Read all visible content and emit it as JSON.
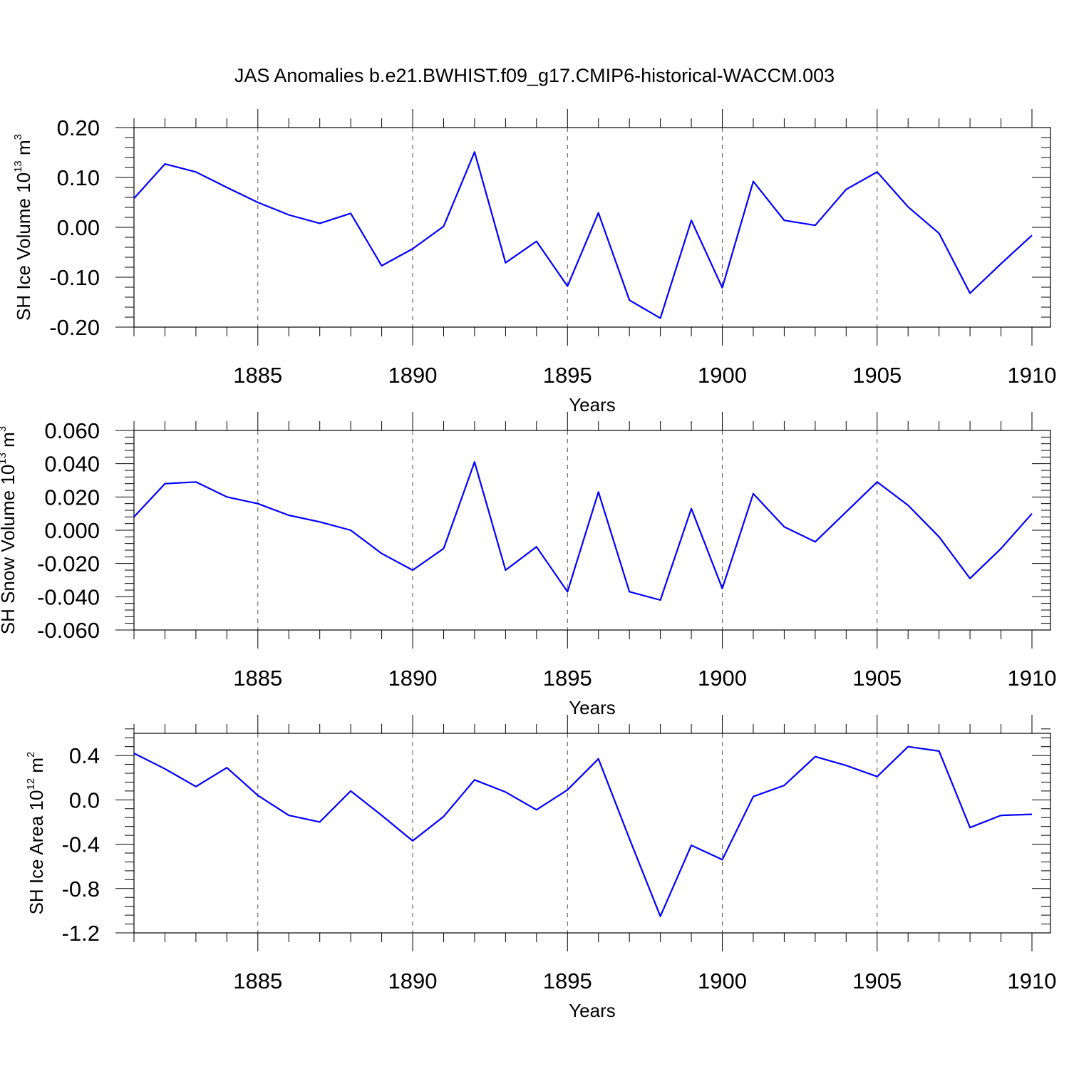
{
  "title": "JAS Anomalies b.e21.BWHIST.f09_g17.CMIP6-historical-WACCM.003",
  "line_color": "#0000ff",
  "chart_data": [
    {
      "type": "line",
      "ylabel": "SH Ice Volume 10",
      "ylabel_exp": "13",
      "ylabel_unit": " m",
      "ylabel_unit_exp": "3",
      "xlabel": "Years",
      "xlim": [
        1881,
        1910
      ],
      "ylim": [
        -0.2,
        0.2
      ],
      "yticks": [
        0.2,
        0.1,
        0.0,
        -0.1,
        -0.2
      ],
      "ytick_labels": [
        "0.20",
        "0.10",
        "0.00",
        "-0.10",
        "-0.20"
      ],
      "xticks": [
        1885,
        1890,
        1895,
        1900,
        1905,
        1910
      ],
      "xtick_labels": [
        "1885",
        "1890",
        "1895",
        "1900",
        "1905",
        "1910"
      ],
      "x": [
        1881,
        1882,
        1883,
        1884,
        1885,
        1886,
        1887,
        1888,
        1889,
        1890,
        1891,
        1892,
        1893,
        1894,
        1895,
        1896,
        1897,
        1898,
        1899,
        1900,
        1901,
        1902,
        1903,
        1904,
        1905,
        1906,
        1907,
        1908,
        1909,
        1910
      ],
      "values": [
        0.058,
        0.127,
        0.111,
        0.08,
        0.05,
        0.025,
        0.008,
        0.028,
        -0.077,
        -0.043,
        0.002,
        0.151,
        -0.071,
        -0.028,
        -0.118,
        0.029,
        -0.146,
        -0.182,
        0.014,
        -0.121,
        0.092,
        0.014,
        0.004,
        0.076,
        0.111,
        0.041,
        -0.012,
        -0.132,
        -0.073,
        -0.016
      ]
    },
    {
      "type": "line",
      "ylabel": "SH Snow Volume 10",
      "ylabel_exp": "13",
      "ylabel_unit": " m",
      "ylabel_unit_exp": "3",
      "xlabel": "Years",
      "xlim": [
        1881,
        1910
      ],
      "ylim": [
        -0.06,
        0.06
      ],
      "yticks": [
        0.06,
        0.04,
        0.02,
        0.0,
        -0.02,
        -0.04,
        -0.06
      ],
      "ytick_labels": [
        "0.060",
        "0.040",
        "0.020",
        "0.000",
        "-0.020",
        "-0.040",
        "-0.060"
      ],
      "xticks": [
        1885,
        1890,
        1895,
        1900,
        1905,
        1910
      ],
      "xtick_labels": [
        "1885",
        "1890",
        "1895",
        "1900",
        "1905",
        "1910"
      ],
      "x": [
        1881,
        1882,
        1883,
        1884,
        1885,
        1886,
        1887,
        1888,
        1889,
        1890,
        1891,
        1892,
        1893,
        1894,
        1895,
        1896,
        1897,
        1898,
        1899,
        1900,
        1901,
        1902,
        1903,
        1904,
        1905,
        1906,
        1907,
        1908,
        1909,
        1910
      ],
      "values": [
        0.008,
        0.028,
        0.029,
        0.02,
        0.016,
        0.009,
        0.005,
        0.0,
        -0.014,
        -0.024,
        -0.011,
        0.041,
        -0.024,
        -0.01,
        -0.037,
        0.023,
        -0.037,
        -0.042,
        0.013,
        -0.035,
        0.022,
        0.002,
        -0.007,
        0.011,
        0.029,
        0.015,
        -0.004,
        -0.029,
        -0.011,
        0.01
      ]
    },
    {
      "type": "line",
      "ylabel": "SH Ice Area 10",
      "ylabel_exp": "12",
      "ylabel_unit": " m",
      "ylabel_unit_exp": "2",
      "xlabel": "Years",
      "xlim": [
        1881,
        1910
      ],
      "ylim": [
        -1.2,
        0.6
      ],
      "yticks": [
        0.4,
        0.0,
        -0.4,
        -0.8,
        -1.2
      ],
      "ytick_labels": [
        "0.4",
        "0.0",
        "-0.4",
        "-0.8",
        "-1.2"
      ],
      "xticks": [
        1885,
        1890,
        1895,
        1900,
        1905,
        1910
      ],
      "xtick_labels": [
        "1885",
        "1890",
        "1895",
        "1900",
        "1905",
        "1910"
      ],
      "x": [
        1881,
        1882,
        1883,
        1884,
        1885,
        1886,
        1887,
        1888,
        1889,
        1890,
        1891,
        1892,
        1893,
        1894,
        1895,
        1896,
        1897,
        1898,
        1899,
        1900,
        1901,
        1902,
        1903,
        1904,
        1905,
        1906,
        1907,
        1908,
        1909,
        1910
      ],
      "values": [
        0.42,
        0.28,
        0.12,
        0.29,
        0.04,
        -0.14,
        -0.2,
        0.08,
        -0.14,
        -0.37,
        -0.15,
        0.18,
        0.07,
        -0.09,
        0.09,
        0.37,
        -0.35,
        -1.05,
        -0.41,
        -0.54,
        0.03,
        0.13,
        0.39,
        0.31,
        0.21,
        0.48,
        0.44,
        -0.25,
        -0.14,
        -0.13
      ]
    }
  ]
}
